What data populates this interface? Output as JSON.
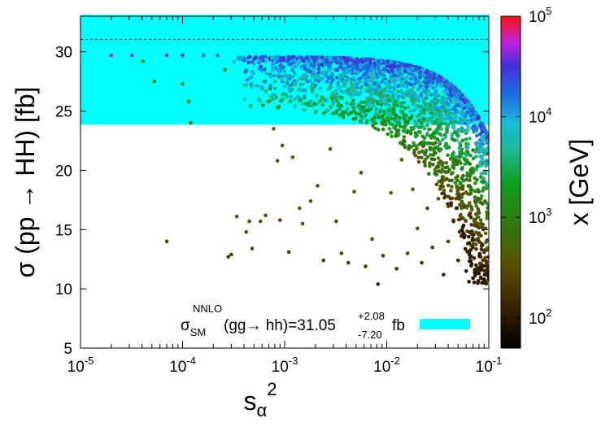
{
  "chart_data": {
    "type": "scatter",
    "title": "",
    "xlabel": {
      "base": "s",
      "sub": "α",
      "sup": "2"
    },
    "ylabel": "σ (pp → HH) [fb]",
    "colorbar_label": "x [GeV]",
    "xscale": "log",
    "xlim": [
      1e-05,
      0.1
    ],
    "ylim": [
      5,
      33
    ],
    "x_ticks": [
      {
        "value": 1e-05,
        "base": "10",
        "exp": "-5"
      },
      {
        "value": 0.0001,
        "base": "10",
        "exp": "-4"
      },
      {
        "value": 0.001,
        "base": "10",
        "exp": "-3"
      },
      {
        "value": 0.01,
        "base": "10",
        "exp": "-2"
      },
      {
        "value": 0.1,
        "base": "10",
        "exp": "-1"
      }
    ],
    "y_ticks": [
      5,
      10,
      15,
      20,
      25,
      30
    ],
    "colorbar": {
      "scale": "log",
      "range": [
        50,
        100000
      ],
      "ticks": [
        {
          "value": 100,
          "base": "10",
          "exp": "2"
        },
        {
          "value": 1000,
          "base": "10",
          "exp": "3"
        },
        {
          "value": 10000,
          "base": "10",
          "exp": "4"
        },
        {
          "value": 100000,
          "base": "10",
          "exp": "5"
        }
      ]
    },
    "band": {
      "y_low": 23.85,
      "y_high": 33.13,
      "color": "#00ffff"
    },
    "sm_central_line": 31.05,
    "legend": {
      "sigma": "σ",
      "sub": "SM",
      "sup": "NNLO",
      "process": "(gg→ hh)=31.05",
      "err_up": "+2.08",
      "err_down": "-7.20",
      "unit": "fb",
      "position": "bottom-center"
    },
    "series": [
      {
        "points": [
          [
            2e-05,
            29.7,
            60000
          ],
          [
            3.2e-05,
            29.7,
            45000
          ],
          [
            4.1e-05,
            29.2,
            1500
          ],
          [
            5.3e-05,
            27.5,
            1200
          ],
          [
            7e-05,
            29.7,
            55000
          ],
          [
            7e-05,
            14.0,
            250
          ],
          [
            0.0001,
            29.7,
            30000
          ],
          [
            0.0001,
            27.3,
            1100
          ],
          [
            0.000115,
            25.8,
            900
          ],
          [
            0.00012,
            24.0,
            700
          ],
          [
            0.00016,
            29.7,
            22000
          ],
          [
            0.00022,
            29.7,
            18000
          ],
          [
            0.00026,
            28.5,
            1000
          ],
          [
            0.00028,
            12.7,
            200
          ],
          [
            0.0003,
            12.9,
            200
          ],
          [
            0.00034,
            16.1,
            300
          ],
          [
            0.00038,
            29.5,
            8000
          ],
          [
            0.00042,
            14.8,
            280
          ],
          [
            0.00045,
            15.7,
            300
          ],
          [
            0.00048,
            13.4,
            250
          ],
          [
            0.00052,
            29.6,
            12000
          ],
          [
            0.00058,
            15.7,
            300
          ],
          [
            0.00065,
            16.2,
            320
          ],
          [
            0.00072,
            26.9,
            1100
          ],
          [
            0.00078,
            23.5,
            600
          ],
          [
            0.00085,
            20.8,
            450
          ],
          [
            0.0009,
            15.8,
            300
          ],
          [
            0.00095,
            22.1,
            500
          ],
          [
            0.0011,
            13.1,
            250
          ],
          [
            0.0012,
            21.1,
            480
          ],
          [
            0.0014,
            16.8,
            350
          ],
          [
            0.0015,
            15.5,
            300
          ],
          [
            0.0018,
            17.4,
            350
          ],
          [
            0.0021,
            18.7,
            380
          ],
          [
            0.0024,
            12.4,
            220
          ],
          [
            0.0028,
            21.8,
            480
          ],
          [
            0.0032,
            15.7,
            300
          ],
          [
            0.0036,
            13.0,
            250
          ],
          [
            0.0042,
            12.2,
            220
          ],
          [
            0.0048,
            18.2,
            380
          ],
          [
            0.0056,
            19.8,
            420
          ],
          [
            0.0062,
            11.9,
            200
          ],
          [
            0.0072,
            14.2,
            260
          ],
          [
            0.0082,
            10.4,
            150
          ],
          [
            0.0092,
            12.8,
            230
          ],
          [
            0.011,
            18.1,
            380
          ],
          [
            0.0125,
            11.7,
            200
          ],
          [
            0.014,
            20.9,
            450
          ],
          [
            0.016,
            13.0,
            230
          ],
          [
            0.018,
            18.4,
            380
          ],
          [
            0.02,
            15.1,
            280
          ],
          [
            0.022,
            12.2,
            200
          ],
          [
            0.025,
            16.8,
            320
          ],
          [
            0.028,
            13.5,
            240
          ],
          [
            0.032,
            17.6,
            350
          ],
          [
            0.036,
            11.2,
            120
          ],
          [
            0.04,
            14.0,
            220
          ],
          [
            0.045,
            15.8,
            280
          ],
          [
            0.05,
            12.4,
            150
          ],
          [
            0.055,
            14.9,
            240
          ],
          [
            0.06,
            11.5,
            100
          ],
          [
            0.065,
            13.2,
            180
          ],
          [
            0.07,
            10.9,
            80
          ],
          [
            0.075,
            12.0,
            120
          ],
          [
            0.08,
            11.3,
            90
          ],
          [
            0.085,
            13.6,
            200
          ],
          [
            0.09,
            10.8,
            70
          ],
          [
            0.095,
            12.3,
            130
          ],
          [
            0.098,
            11.1,
            80
          ],
          [
            0.075,
            16.3,
            300
          ],
          [
            0.08,
            18.2,
            360
          ],
          [
            0.088,
            15.0,
            260
          ],
          [
            0.092,
            17.4,
            330
          ],
          [
            0.096,
            14.1,
            220
          ],
          [
            0.066,
            19.6,
            400
          ],
          [
            0.058,
            20.9,
            450
          ],
          [
            0.07,
            21.7,
            480
          ],
          [
            0.085,
            20.5,
            430
          ],
          [
            0.094,
            22.6,
            520
          ],
          [
            0.097,
            21.4,
            460
          ],
          [
            0.052,
            17.1,
            320
          ],
          [
            0.064,
            10.6,
            70
          ],
          [
            0.078,
            10.5,
            60
          ],
          [
            0.083,
            12.7,
            150
          ]
        ],
        "dense_cluster": "many additional points along the upper envelope near 29.5 fb, bending down to about 23 fb as s_α² approaches 0.1"
      }
    ]
  }
}
